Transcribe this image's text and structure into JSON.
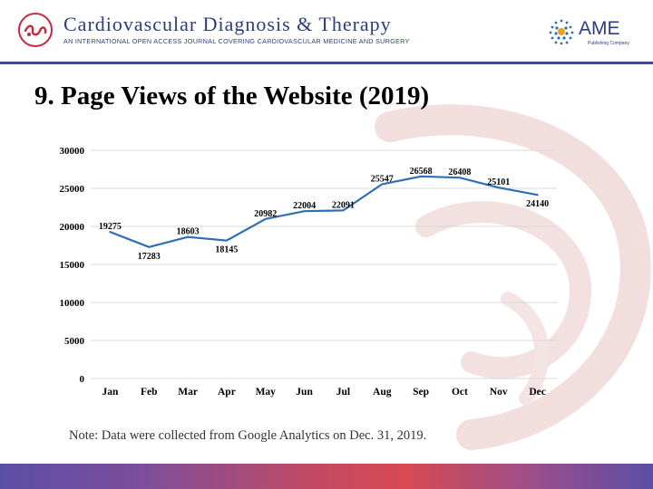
{
  "header": {
    "journal_title": "Cardiovascular Diagnosis & Therapy",
    "journal_subtitle": "AN INTERNATIONAL OPEN ACCESS JOURNAL COVERING CARDIOVASCULAR MEDICINE AND SURGERY",
    "publisher_name": "AME",
    "publisher_tagline": "Publishing Company",
    "logo_icon": "cdt-journal-logo-icon",
    "publisher_icon": "ame-dot-globe-icon"
  },
  "slide": {
    "title": "9. Page Views of the Website (2019)",
    "note": "Note: Data were collected from Google Analytics on Dec. 31, 2019."
  },
  "colors": {
    "line": "#2f6eb0",
    "header_text": "#2d3e7a",
    "header_rule": "#3e4a8c",
    "watermark": "#f3dede"
  },
  "chart_data": {
    "type": "line",
    "title": "",
    "xlabel": "",
    "ylabel": "",
    "categories": [
      "Jan",
      "Feb",
      "Mar",
      "Apr",
      "May",
      "Jun",
      "Jul",
      "Aug",
      "Sep",
      "Oct",
      "Nov",
      "Dec"
    ],
    "series": [
      {
        "values": [
          19275,
          17283,
          18603,
          18145,
          20982,
          22004,
          22091,
          25547,
          26568,
          26408,
          25101,
          24140
        ]
      }
    ],
    "ylim": [
      0,
      30000
    ],
    "yticks": [
      0,
      5000,
      10000,
      15000,
      20000,
      25000,
      30000
    ],
    "grid": true,
    "legend": "none",
    "data_labels": true
  }
}
